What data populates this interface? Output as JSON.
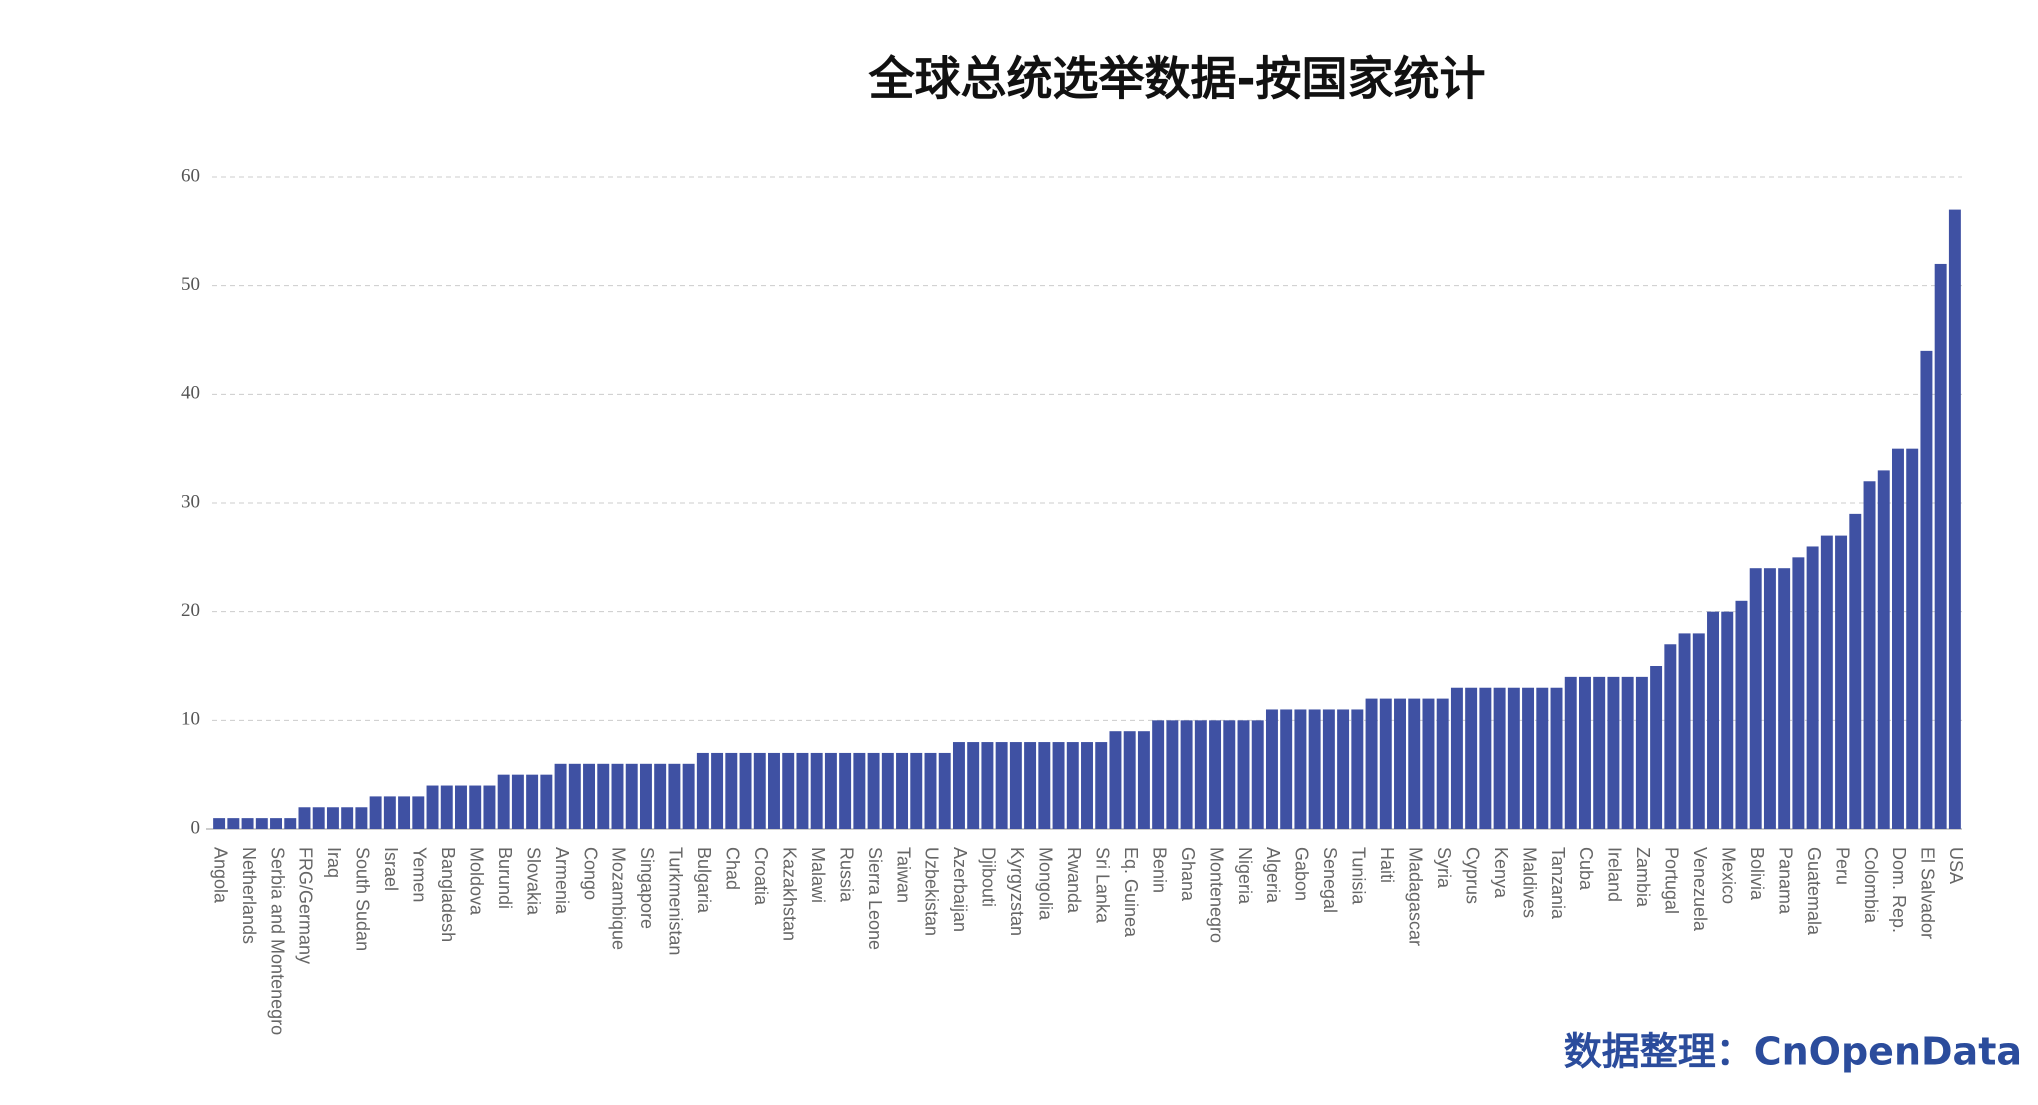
{
  "chart_data": {
    "type": "bar",
    "title": "全球总统选举数据-按国家统计",
    "note": "数据整理：CnOpenData",
    "categories": [
      "Angola",
      null,
      "Netherlands",
      null,
      "Serbia and Montenegro",
      null,
      "FRG/Germany",
      null,
      "Iraq",
      null,
      "South Sudan",
      null,
      "Israel",
      null,
      "Yemen",
      null,
      "Bangladesh",
      null,
      "Moldova",
      null,
      "Burundi",
      null,
      "Slovakia",
      null,
      "Armenia",
      null,
      "Congo",
      null,
      "Mozambique",
      null,
      "Singapore",
      null,
      "Turkmenistan",
      null,
      "Bulgaria",
      null,
      "Chad",
      null,
      "Croatia",
      null,
      "Kazakhstan",
      null,
      "Malawi",
      null,
      "Russia",
      null,
      "Sierra Leone",
      null,
      "Taiwan",
      null,
      "Uzbekistan",
      null,
      "Azerbaijan",
      null,
      "Djibouti",
      null,
      "Kyrgyzstan",
      null,
      "Mongolia",
      null,
      "Rwanda",
      null,
      "Sri Lanka",
      null,
      "Eq. Guinea",
      null,
      "Benin",
      null,
      "Ghana",
      null,
      "Montenegro",
      null,
      "Nigeria",
      null,
      "Algeria",
      null,
      "Gabon",
      null,
      "Senegal",
      null,
      "Tunisia",
      null,
      "Haiti",
      null,
      "Madagascar",
      null,
      "Syria",
      null,
      "Cyprus",
      null,
      "Kenya",
      null,
      "Maldives",
      null,
      "Tanzania",
      null,
      "Cuba",
      null,
      "Ireland",
      null,
      "Zambia",
      null,
      "Portugal",
      null,
      "Venezuela",
      null,
      "Mexico",
      null,
      "Bolivia",
      null,
      "Panama",
      null,
      "Guatemala",
      null,
      "Peru",
      null,
      "Colombia",
      null,
      "Dom. Rep.",
      null,
      "El Salvador",
      null,
      "USA"
    ],
    "values": [
      1,
      1,
      1,
      1,
      1,
      1,
      2,
      2,
      2,
      2,
      2,
      3,
      3,
      3,
      3,
      4,
      4,
      4,
      4,
      4,
      5,
      5,
      5,
      5,
      6,
      6,
      6,
      6,
      6,
      6,
      6,
      6,
      6,
      6,
      7,
      7,
      7,
      7,
      7,
      7,
      7,
      7,
      7,
      7,
      7,
      7,
      7,
      7,
      7,
      7,
      7,
      7,
      8,
      8,
      8,
      8,
      8,
      8,
      8,
      8,
      8,
      8,
      8,
      9,
      9,
      9,
      10,
      10,
      10,
      10,
      10,
      10,
      10,
      10,
      11,
      11,
      11,
      11,
      11,
      11,
      11,
      12,
      12,
      12,
      12,
      12,
      12,
      13,
      13,
      13,
      13,
      13,
      13,
      13,
      13,
      14,
      14,
      14,
      14,
      14,
      14,
      15,
      17,
      18,
      18,
      20,
      20,
      21,
      24,
      24,
      24,
      25,
      26,
      27,
      27,
      29,
      32,
      33,
      35,
      35,
      44,
      52,
      57
    ],
    "color": "#3f51a3",
    "ylim": [
      0,
      60
    ],
    "yticks": [
      0,
      10,
      20,
      30,
      40,
      50,
      60
    ],
    "grid": true
  }
}
